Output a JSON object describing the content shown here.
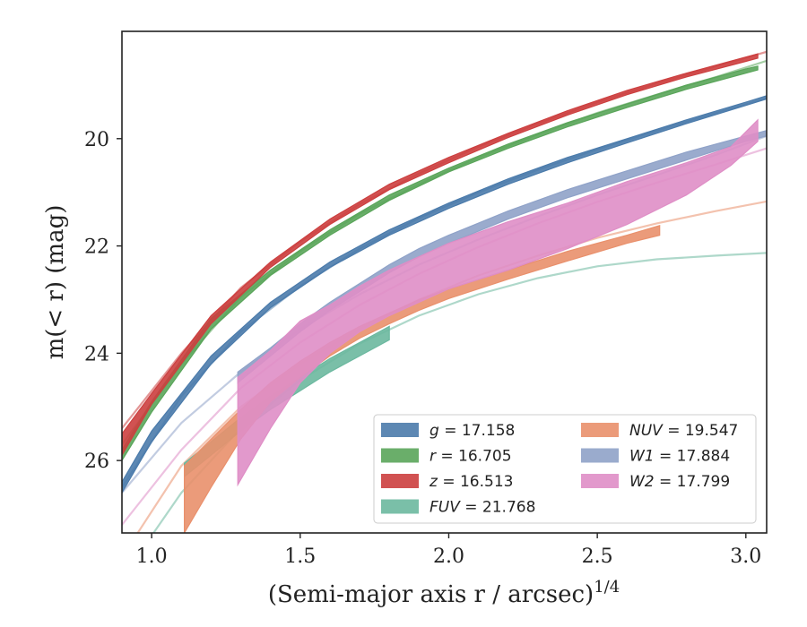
{
  "chart_data": {
    "type": "line",
    "xlabel": "(Semi-major axis r / arcsec)",
    "xlabel_exponent": "1/4",
    "ylabel": "m(< r) (mag)",
    "xlim": [
      0.9,
      3.07
    ],
    "ylim": [
      27.35,
      18.0
    ],
    "y_inverted": true,
    "x_ticks": [
      1.0,
      1.5,
      2.0,
      2.5,
      3.0
    ],
    "x_tick_labels": [
      "1.0",
      "1.5",
      "2.0",
      "2.5",
      "3.0"
    ],
    "y_ticks": [
      20,
      22,
      24,
      26
    ],
    "y_tick_labels": [
      "20",
      "22",
      "24",
      "26"
    ],
    "grid": false,
    "legend_position": "lower-right",
    "series": [
      {
        "name": "g = 17.158",
        "italic_name": "g",
        "value_text": "= 17.158",
        "color": "#4b7bab",
        "x": [
          0.9,
          1.0,
          1.2,
          1.4,
          1.6,
          1.8,
          2.0,
          2.2,
          2.4,
          2.6,
          2.8,
          3.0,
          3.07
        ],
        "band_upper": [
          26.4,
          25.45,
          24.05,
          23.05,
          22.3,
          21.7,
          21.2,
          20.75,
          20.35,
          20.0,
          19.65,
          19.32,
          19.2
        ],
        "band_lower": [
          26.6,
          25.65,
          24.2,
          23.15,
          22.4,
          21.8,
          21.3,
          20.85,
          20.45,
          20.08,
          19.72,
          19.38,
          19.26
        ],
        "fit_x": [
          0.9,
          1.1,
          1.3,
          1.5,
          1.7,
          1.9,
          2.1,
          2.3,
          2.5,
          2.7,
          2.9,
          3.07
        ],
        "fit_y": [
          26.5,
          24.8,
          23.6,
          22.75,
          22.05,
          21.48,
          21.0,
          20.58,
          20.2,
          19.85,
          19.52,
          19.25
        ]
      },
      {
        "name": "r = 16.705",
        "italic_name": "r",
        "value_text": "= 16.705",
        "color": "#5aa55a",
        "x": [
          0.9,
          1.0,
          1.2,
          1.4,
          1.6,
          1.8,
          2.0,
          2.2,
          2.4,
          2.6,
          2.8,
          3.0,
          3.04
        ],
        "band_upper": [
          25.8,
          24.9,
          23.35,
          22.45,
          21.7,
          21.05,
          20.55,
          20.1,
          19.7,
          19.35,
          19.0,
          18.7,
          18.65
        ],
        "band_lower": [
          26.0,
          25.1,
          23.55,
          22.55,
          21.8,
          21.15,
          20.62,
          20.18,
          19.78,
          19.42,
          19.08,
          18.78,
          18.72
        ],
        "fit_x": [
          0.9,
          1.1,
          1.3,
          1.5,
          1.7,
          1.9,
          2.1,
          2.3,
          2.5,
          2.7,
          2.9,
          3.07
        ],
        "fit_y": [
          25.7,
          24.2,
          22.95,
          22.1,
          21.4,
          20.85,
          20.35,
          19.92,
          19.52,
          19.18,
          18.85,
          18.55
        ]
      },
      {
        "name": "z = 16.513",
        "italic_name": "z",
        "value_text": "= 16.513",
        "color": "#cc3f3f",
        "x": [
          0.9,
          1.0,
          1.2,
          1.4,
          1.6,
          1.8,
          2.0,
          2.2,
          2.4,
          2.6,
          2.8,
          3.0,
          3.04
        ],
        "band_upper": [
          25.5,
          24.75,
          23.3,
          22.3,
          21.5,
          20.85,
          20.35,
          19.9,
          19.48,
          19.1,
          18.78,
          18.48,
          18.42
        ],
        "band_lower": [
          25.9,
          24.95,
          23.45,
          22.4,
          21.6,
          20.95,
          20.45,
          19.98,
          19.56,
          19.18,
          18.85,
          18.56,
          18.5
        ],
        "fit_x": [
          0.9,
          1.1,
          1.3,
          1.5,
          1.7,
          1.9,
          2.1,
          2.3,
          2.5,
          2.7,
          2.9,
          3.07
        ],
        "fit_y": [
          25.4,
          24.0,
          22.78,
          21.92,
          21.22,
          20.65,
          20.15,
          19.72,
          19.32,
          18.97,
          18.65,
          18.38
        ]
      },
      {
        "name": "FUV = 21.768",
        "italic_name": "FUV",
        "value_text": "= 21.768",
        "color": "#6bb89f",
        "x": [
          1.11,
          1.2,
          1.3,
          1.4,
          1.5,
          1.6,
          1.7,
          1.8
        ],
        "band_upper": [
          26.05,
          25.65,
          25.2,
          24.8,
          24.45,
          24.1,
          23.8,
          23.5
        ],
        "band_lower": [
          26.3,
          25.9,
          25.45,
          25.05,
          24.7,
          24.35,
          24.05,
          23.75
        ],
        "fit_x": [
          0.9,
          1.1,
          1.3,
          1.5,
          1.7,
          1.9,
          2.1,
          2.3,
          2.5,
          2.7,
          2.9,
          3.07
        ],
        "fit_y": [
          28.2,
          26.6,
          25.4,
          24.5,
          23.82,
          23.3,
          22.9,
          22.6,
          22.38,
          22.25,
          22.18,
          22.13
        ]
      },
      {
        "name": "NUV = 19.547",
        "italic_name": "NUV",
        "value_text": "= 19.547",
        "color": "#e9906c",
        "x": [
          1.11,
          1.2,
          1.3,
          1.4,
          1.5,
          1.6,
          1.7,
          1.8,
          1.9,
          2.0,
          2.2,
          2.4,
          2.6,
          2.71
        ],
        "band_upper": [
          26.1,
          25.6,
          25.05,
          24.55,
          24.15,
          23.8,
          23.5,
          23.25,
          23.0,
          22.8,
          22.45,
          22.1,
          21.8,
          21.62
        ],
        "band_lower": [
          27.35,
          26.5,
          25.6,
          24.9,
          24.45,
          24.05,
          23.72,
          23.45,
          23.2,
          22.98,
          22.62,
          22.28,
          21.95,
          21.8
        ],
        "fit_x": [
          0.9,
          1.1,
          1.3,
          1.5,
          1.7,
          1.9,
          2.1,
          2.3,
          2.5,
          2.7,
          2.9,
          3.07
        ],
        "fit_y": [
          27.8,
          26.1,
          25.0,
          24.2,
          23.55,
          23.0,
          22.55,
          22.18,
          21.85,
          21.58,
          21.35,
          21.17
        ]
      },
      {
        "name": "W1 = 17.884",
        "italic_name": "W1",
        "value_text": "= 17.884",
        "color": "#8fa2c8",
        "x": [
          1.29,
          1.4,
          1.5,
          1.6,
          1.7,
          1.8,
          1.9,
          2.0,
          2.2,
          2.4,
          2.6,
          2.8,
          3.0,
          3.07
        ],
        "band_upper": [
          24.35,
          23.9,
          23.45,
          23.05,
          22.7,
          22.35,
          22.05,
          21.8,
          21.35,
          20.95,
          20.6,
          20.25,
          19.95,
          19.85
        ],
        "band_lower": [
          24.55,
          24.05,
          23.6,
          23.2,
          22.85,
          22.5,
          22.2,
          21.95,
          21.5,
          21.1,
          20.75,
          20.4,
          20.05,
          19.95
        ],
        "fit_x": [
          0.9,
          1.1,
          1.3,
          1.5,
          1.7,
          1.9,
          2.1,
          2.3,
          2.5,
          2.7,
          2.9,
          3.07
        ],
        "fit_y": [
          26.6,
          25.3,
          24.35,
          23.55,
          22.9,
          22.35,
          21.88,
          21.45,
          21.05,
          20.68,
          20.3,
          19.95
        ]
      },
      {
        "name": "W2 = 17.799",
        "italic_name": "W2",
        "value_text": "= 17.799",
        "color": "#df8ec6",
        "x": [
          1.29,
          1.4,
          1.5,
          1.6,
          1.7,
          1.8,
          1.9,
          2.0,
          2.2,
          2.4,
          2.6,
          2.8,
          2.95,
          3.04
        ],
        "band_upper": [
          24.45,
          23.95,
          23.4,
          23.1,
          22.75,
          22.45,
          22.2,
          21.95,
          21.55,
          21.2,
          20.8,
          20.45,
          20.15,
          19.65
        ],
        "band_lower": [
          26.45,
          25.4,
          24.55,
          24.0,
          23.6,
          23.3,
          23.05,
          22.8,
          22.45,
          22.05,
          21.6,
          21.05,
          20.5,
          20.05
        ],
        "fit_x": [
          0.9,
          1.1,
          1.3,
          1.5,
          1.7,
          1.9,
          2.1,
          2.3,
          2.5,
          2.7,
          2.9,
          3.07
        ],
        "fit_y": [
          27.2,
          25.8,
          24.65,
          23.8,
          23.1,
          22.52,
          22.02,
          21.58,
          21.18,
          20.82,
          20.48,
          20.18
        ]
      }
    ]
  }
}
